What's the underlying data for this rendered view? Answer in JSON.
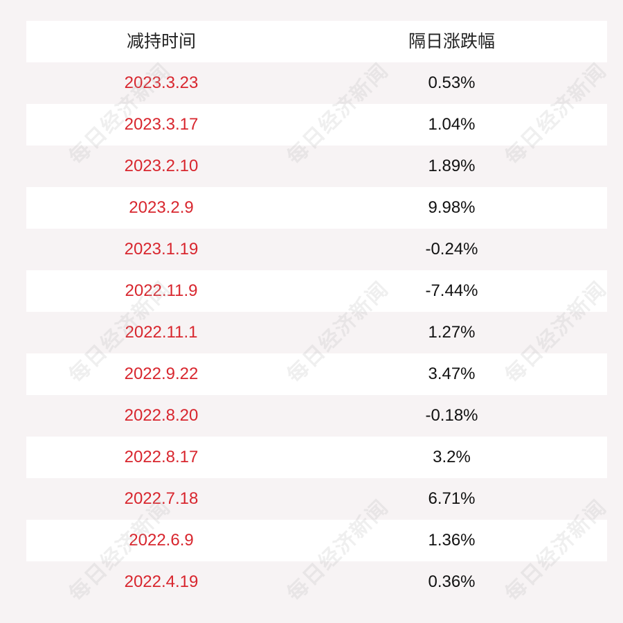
{
  "table": {
    "headers": [
      "减持时间",
      "隔日涨跌幅"
    ],
    "rows": [
      {
        "date": "2023.3.23",
        "change": "0.53%"
      },
      {
        "date": "2023.3.17",
        "change": "1.04%"
      },
      {
        "date": "2023.2.10",
        "change": "1.89%"
      },
      {
        "date": "2023.2.9",
        "change": "9.98%"
      },
      {
        "date": "2023.1.19",
        "change": "-0.24%"
      },
      {
        "date": "2022.11.9",
        "change": "-7.44%"
      },
      {
        "date": "2022.11.1",
        "change": "1.27%"
      },
      {
        "date": "2022.9.22",
        "change": "3.47%"
      },
      {
        "date": "2022.8.20",
        "change": "-0.18%"
      },
      {
        "date": "2022.8.17",
        "change": "3.2%"
      },
      {
        "date": "2022.7.18",
        "change": "6.71%"
      },
      {
        "date": "2022.6.9",
        "change": "1.36%"
      },
      {
        "date": "2022.4.19",
        "change": "0.36%"
      }
    ]
  },
  "watermark": {
    "text": "每日经济新闻"
  },
  "colors": {
    "date_text": "#d8262e",
    "value_text": "#111111",
    "background": "#f7f3f4",
    "row_white": "#ffffff"
  }
}
